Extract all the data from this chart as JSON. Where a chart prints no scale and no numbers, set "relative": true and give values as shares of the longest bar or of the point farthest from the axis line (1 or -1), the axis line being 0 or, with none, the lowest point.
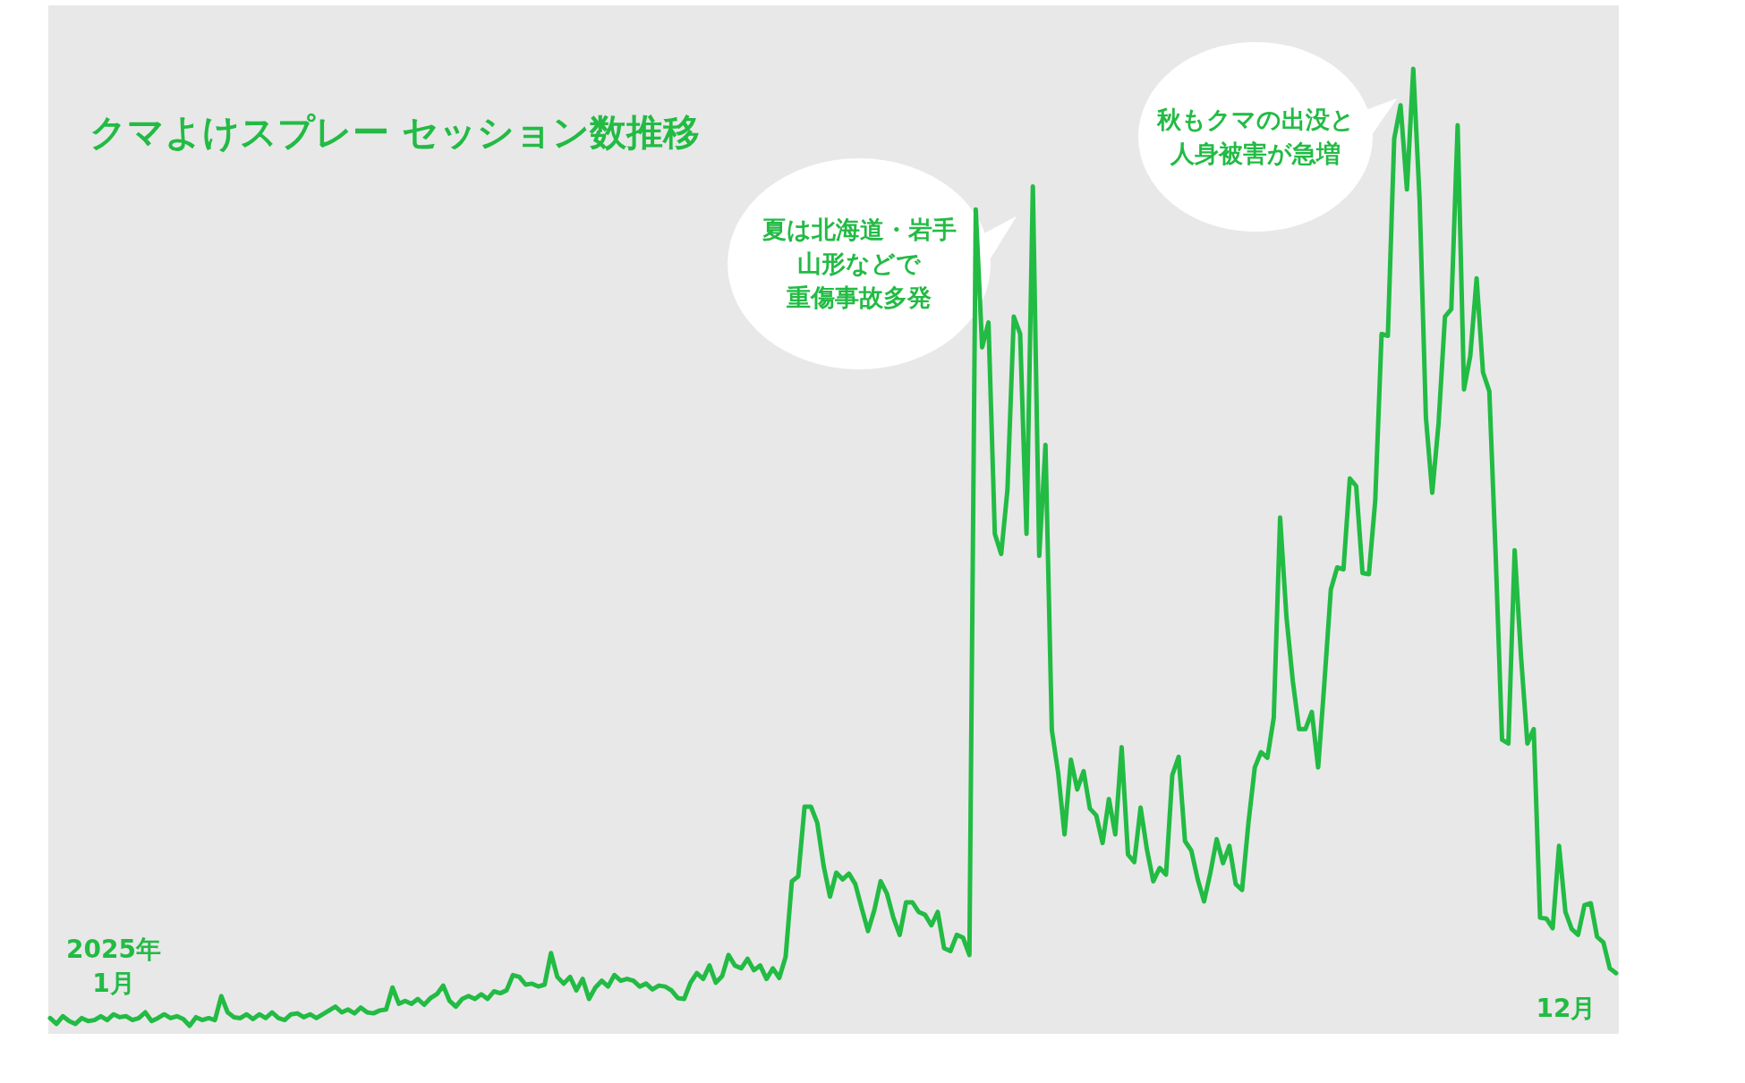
{
  "chart_data": {
    "type": "line",
    "title": "クマよけスプレー セッション数推移",
    "relative": true,
    "categories": [
      null,
      null,
      null,
      null,
      null,
      null,
      null,
      null,
      null,
      null,
      null,
      null,
      null,
      null,
      null,
      null,
      null,
      null,
      null,
      null,
      null,
      null,
      null,
      null,
      null,
      null,
      null,
      null,
      null,
      null,
      null,
      null,
      null,
      null,
      null,
      null,
      null,
      null,
      null,
      null,
      null,
      null,
      null,
      null,
      null,
      null,
      null,
      null,
      null,
      null,
      null,
      null,
      null,
      null,
      null,
      null,
      null,
      null,
      null,
      null,
      null,
      null,
      null,
      null,
      null,
      null,
      null,
      null,
      null,
      null,
      null,
      null,
      null,
      null,
      null,
      null,
      null,
      null,
      null,
      null,
      null,
      null,
      null,
      null,
      null,
      null,
      null,
      null,
      null,
      null,
      null,
      null,
      null,
      null,
      null,
      null,
      null,
      null,
      null,
      null,
      null,
      null,
      null,
      null,
      null,
      null,
      null,
      null,
      null,
      null,
      null,
      null,
      null,
      null,
      null,
      null,
      null,
      null,
      null,
      null,
      null,
      null,
      null,
      null,
      null,
      null,
      null,
      null,
      null,
      null,
      null,
      null,
      null,
      null,
      null,
      null,
      null,
      null,
      null,
      null,
      null,
      null,
      null,
      null,
      null,
      null,
      null,
      null,
      null,
      null,
      null,
      null,
      null,
      null,
      null,
      null,
      null,
      null,
      null,
      null,
      null,
      null,
      null,
      null,
      null,
      null,
      null,
      null,
      null,
      null,
      null,
      null,
      null,
      null,
      null,
      null,
      null,
      null,
      null,
      null,
      null,
      null,
      null,
      null,
      null,
      null,
      null,
      null,
      null,
      null,
      null,
      null,
      null,
      null,
      null,
      null,
      null,
      null,
      null,
      null,
      null,
      null,
      null,
      null,
      null,
      null,
      null,
      null,
      null,
      null,
      null,
      null,
      null,
      null,
      null,
      null,
      null,
      null,
      null,
      null,
      null,
      null,
      null,
      null,
      null,
      null,
      null,
      null,
      null,
      null,
      null,
      null,
      null,
      null,
      null,
      null,
      null,
      null,
      null,
      null,
      null,
      null,
      null,
      null,
      null,
      null,
      null,
      null
    ],
    "series": [
      {
        "color": "#22bb44",
        "values": [
          0.008,
          0.002,
          0.01,
          0.005,
          0.002,
          0.008,
          0.005,
          0.006,
          0.01,
          0.006,
          0.012,
          0.009,
          0.01,
          0.006,
          0.008,
          0.014,
          0.005,
          0.008,
          0.012,
          0.008,
          0.01,
          0.007,
          0,
          0.009,
          0.006,
          0.008,
          0.006,
          0.031,
          0.014,
          0.009,
          0.008,
          0.012,
          0.007,
          0.012,
          0.008,
          0.014,
          0.008,
          0.006,
          0.012,
          0.013,
          0.009,
          0.012,
          0.008,
          0.012,
          0.016,
          0.02,
          0.014,
          0.017,
          0.013,
          0.019,
          0.014,
          0.013,
          0.016,
          0.017,
          0.04,
          0.023,
          0.026,
          0.023,
          0.028,
          0.022,
          0.029,
          0.033,
          0.042,
          0.026,
          0.02,
          0.028,
          0.031,
          0.028,
          0.033,
          0.028,
          0.036,
          0.034,
          0.037,
          0.053,
          0.051,
          0.043,
          0.044,
          0.041,
          0.043,
          0.076,
          0.051,
          0.044,
          0.051,
          0.037,
          0.049,
          0.028,
          0.04,
          0.047,
          0.041,
          0.053,
          0.047,
          0.049,
          0.047,
          0.041,
          0.044,
          0.038,
          0.042,
          0.041,
          0.037,
          0.029,
          0.028,
          0.045,
          0.055,
          0.049,
          0.063,
          0.045,
          0.052,
          0.074,
          0.063,
          0.06,
          0.07,
          0.058,
          0.063,
          0.049,
          0.06,
          0.05,
          0.072,
          0.151,
          0.156,
          0.229,
          0.229,
          0.212,
          0.167,
          0.135,
          0.16,
          0.153,
          0.159,
          0.148,
          0.123,
          0.099,
          0.121,
          0.151,
          0.138,
          0.113,
          0.095,
          0.129,
          0.129,
          0.119,
          0.116,
          0.105,
          0.119,
          0.081,
          0.078,
          0.095,
          0.092,
          0.074,
          0.853,
          0.709,
          0.735,
          0.514,
          0.493,
          0.56,
          0.741,
          0.723,
          0.514,
          0.877,
          0.491,
          0.607,
          0.309,
          0.264,
          0.2,
          0.278,
          0.247,
          0.266,
          0.227,
          0.22,
          0.191,
          0.237,
          0.2,
          0.291,
          0.179,
          0.171,
          0.228,
          0.184,
          0.151,
          0.165,
          0.158,
          0.262,
          0.281,
          0.193,
          0.183,
          0.153,
          0.13,
          0.16,
          0.195,
          0.17,
          0.188,
          0.148,
          0.142,
          0.212,
          0.27,
          0.286,
          0.28,
          0.322,
          0.531,
          0.427,
          0.36,
          0.31,
          0.31,
          0.328,
          0.27,
          0.36,
          0.456,
          0.479,
          0.477,
          0.572,
          0.564,
          0.473,
          0.472,
          0.549,
          0.723,
          0.721,
          0.927,
          0.962,
          0.874,
          1,
          0.863,
          0.636,
          0.557,
          0.63,
          0.741,
          0.749,
          0.941,
          0.665,
          0.7,
          0.781,
          0.683,
          0.663,
          0.491,
          0.299,
          0.295,
          0.497,
          0.386,
          0.295,
          0.31,
          0.113,
          0.112,
          0.102,
          0.188,
          0.119,
          0.101,
          0.095,
          0.126,
          0.128,
          0.093,
          0.087,
          0.06,
          0.055
        ]
      }
    ],
    "annotations": [
      "2025年\n1月",
      "12月",
      "夏は北海道・岩手山形などで重傷事故多発",
      "秋もクマの出没と人身被害が急増"
    ]
  }
}
